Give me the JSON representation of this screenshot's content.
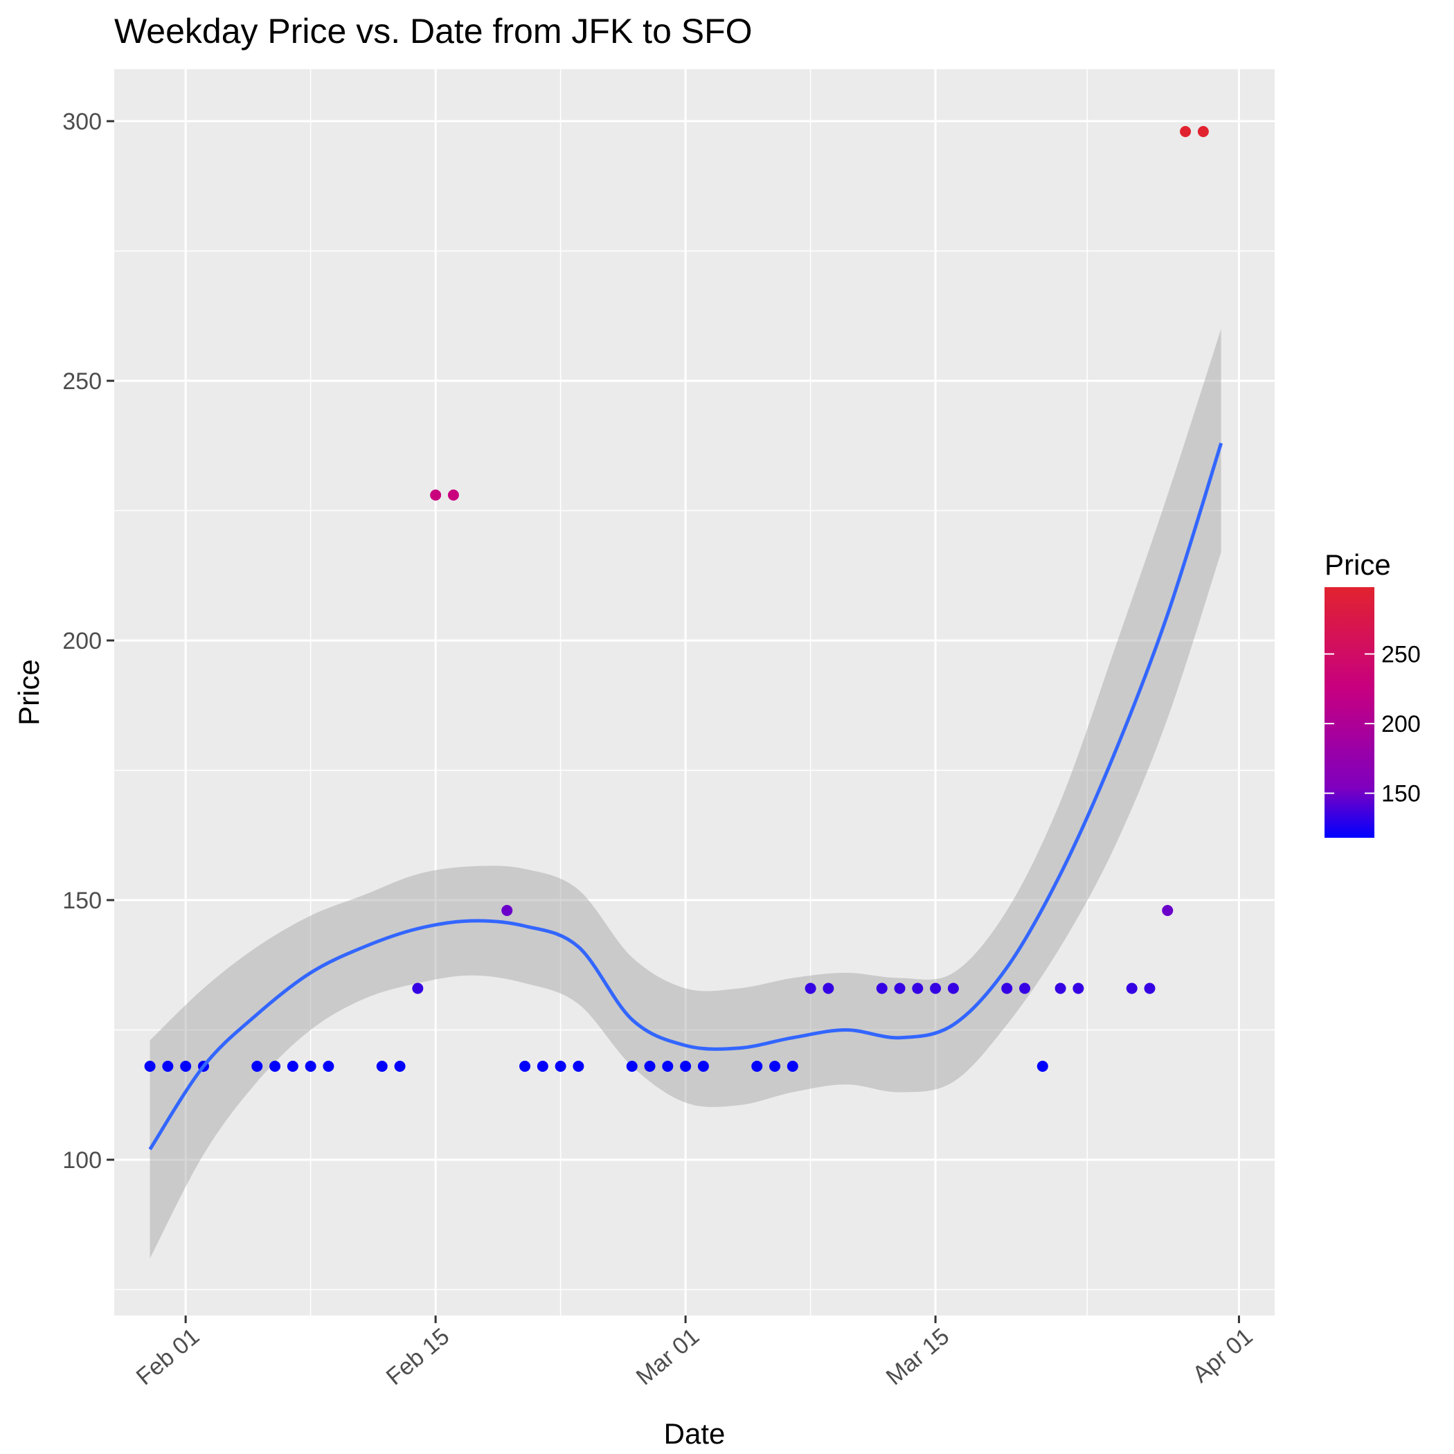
{
  "chart_data": {
    "type": "scatter",
    "title": "Weekday Price vs. Date from JFK to SFO",
    "xlabel": "Date",
    "ylabel": "Price",
    "xlim": [
      "2018-01-28",
      "2018-04-03"
    ],
    "ylim": [
      70,
      310
    ],
    "x_ticks": [
      {
        "date": "2018-02-01",
        "label": "Feb 01"
      },
      {
        "date": "2018-02-15",
        "label": "Feb 15"
      },
      {
        "date": "2018-03-01",
        "label": "Mar 01"
      },
      {
        "date": "2018-03-15",
        "label": "Mar 15"
      },
      {
        "date": "2018-04-01",
        "label": "Apr 01"
      }
    ],
    "y_ticks": [
      100,
      150,
      200,
      250,
      300
    ],
    "grid": true,
    "color_scale": {
      "title": "Price",
      "low_color": "#0000ff",
      "mid_color": "#7f00bf",
      "high_color": "#c8007f",
      "top_color": "#e1232f",
      "range": [
        118,
        298
      ],
      "ticks": [
        150,
        200,
        250
      ]
    },
    "points": [
      {
        "x": "2018-01-30",
        "y": 118
      },
      {
        "x": "2018-01-31",
        "y": 118
      },
      {
        "x": "2018-02-01",
        "y": 118
      },
      {
        "x": "2018-02-02",
        "y": 118
      },
      {
        "x": "2018-02-05",
        "y": 118
      },
      {
        "x": "2018-02-06",
        "y": 118
      },
      {
        "x": "2018-02-07",
        "y": 118
      },
      {
        "x": "2018-02-08",
        "y": 118
      },
      {
        "x": "2018-02-09",
        "y": 118
      },
      {
        "x": "2018-02-12",
        "y": 118
      },
      {
        "x": "2018-02-13",
        "y": 118
      },
      {
        "x": "2018-02-14",
        "y": 133
      },
      {
        "x": "2018-02-15",
        "y": 228
      },
      {
        "x": "2018-02-16",
        "y": 228
      },
      {
        "x": "2018-02-19",
        "y": 148
      },
      {
        "x": "2018-02-20",
        "y": 118
      },
      {
        "x": "2018-02-21",
        "y": 118
      },
      {
        "x": "2018-02-22",
        "y": 118
      },
      {
        "x": "2018-02-23",
        "y": 118
      },
      {
        "x": "2018-02-26",
        "y": 118
      },
      {
        "x": "2018-02-27",
        "y": 118
      },
      {
        "x": "2018-02-28",
        "y": 118
      },
      {
        "x": "2018-03-01",
        "y": 118
      },
      {
        "x": "2018-03-02",
        "y": 118
      },
      {
        "x": "2018-03-05",
        "y": 118
      },
      {
        "x": "2018-03-06",
        "y": 118
      },
      {
        "x": "2018-03-07",
        "y": 118
      },
      {
        "x": "2018-03-08",
        "y": 133
      },
      {
        "x": "2018-03-09",
        "y": 133
      },
      {
        "x": "2018-03-12",
        "y": 133
      },
      {
        "x": "2018-03-13",
        "y": 133
      },
      {
        "x": "2018-03-14",
        "y": 133
      },
      {
        "x": "2018-03-15",
        "y": 133
      },
      {
        "x": "2018-03-16",
        "y": 133
      },
      {
        "x": "2018-03-19",
        "y": 133
      },
      {
        "x": "2018-03-20",
        "y": 133
      },
      {
        "x": "2018-03-21",
        "y": 118
      },
      {
        "x": "2018-03-22",
        "y": 133
      },
      {
        "x": "2018-03-23",
        "y": 133
      },
      {
        "x": "2018-03-26",
        "y": 133
      },
      {
        "x": "2018-03-27",
        "y": 133
      },
      {
        "x": "2018-03-28",
        "y": 148
      },
      {
        "x": "2018-03-29",
        "y": 298
      },
      {
        "x": "2018-03-30",
        "y": 298
      }
    ],
    "smooth": {
      "color": "#3366ff",
      "band_color": "#999999",
      "x": [
        "2018-01-30",
        "2018-02-02",
        "2018-02-05",
        "2018-02-08",
        "2018-02-11",
        "2018-02-14",
        "2018-02-17",
        "2018-02-20",
        "2018-02-23",
        "2018-02-26",
        "2018-03-01",
        "2018-03-04",
        "2018-03-07",
        "2018-03-10",
        "2018-03-13",
        "2018-03-16",
        "2018-03-19",
        "2018-03-22",
        "2018-03-25",
        "2018-03-28",
        "2018-03-31"
      ],
      "y": [
        102,
        118,
        128,
        136,
        141,
        144.5,
        146,
        145,
        141,
        127,
        122,
        121.5,
        123.5,
        125,
        123.5,
        126,
        137,
        155,
        178,
        205,
        238
      ],
      "lower": [
        81,
        101,
        115,
        125,
        131,
        134,
        135.5,
        134,
        130,
        118,
        111,
        110.5,
        113,
        114.5,
        113,
        115,
        126,
        141,
        160,
        185,
        217
      ],
      "upper": [
        123,
        133,
        141,
        147,
        151,
        155,
        156.5,
        156,
        152,
        139,
        133,
        133,
        135,
        136,
        135,
        136,
        148,
        169,
        198,
        228,
        260
      ]
    }
  }
}
